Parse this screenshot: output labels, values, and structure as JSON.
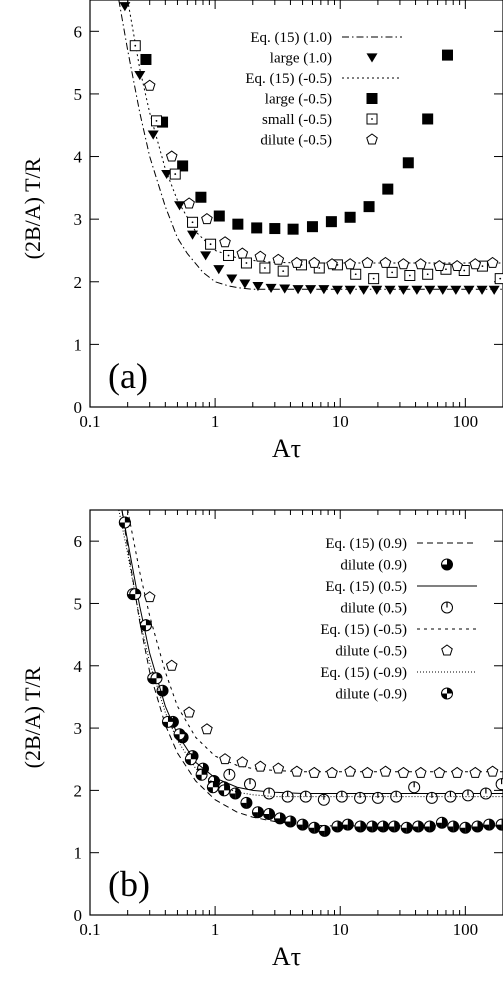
{
  "chart_data": [
    {
      "type": "scatter",
      "panel_label": "(a)",
      "xlabel": "Aτ",
      "ylabel": "(2B/A) T/R",
      "xscale": "log",
      "xlim": [
        0.1,
        200
      ],
      "ylim": [
        0,
        6.5
      ],
      "xticks": [
        {
          "value": 0.1,
          "label": "0.1"
        },
        {
          "value": 1,
          "label": "1"
        },
        {
          "value": 10,
          "label": "10"
        },
        {
          "value": 100,
          "label": "100"
        }
      ],
      "yticks": [
        {
          "value": 0,
          "label": "0"
        },
        {
          "value": 1,
          "label": "1"
        },
        {
          "value": 2,
          "label": "2"
        },
        {
          "value": 3,
          "label": "3"
        },
        {
          "value": 4,
          "label": "4"
        },
        {
          "value": 5,
          "label": "5"
        },
        {
          "value": 6,
          "label": "6"
        }
      ],
      "legend_position": "top-right",
      "series": [
        {
          "name": "Eq. (15) (1.0)",
          "kind": "line",
          "dash": "dashdot",
          "x": [
            0.17,
            0.2,
            0.25,
            0.3,
            0.4,
            0.5,
            0.6,
            0.8,
            1.0,
            1.3,
            1.6,
            2,
            3,
            5,
            10,
            20,
            50,
            100,
            200
          ],
          "y": [
            6.5,
            5.7,
            4.7,
            4.0,
            3.2,
            2.7,
            2.45,
            2.15,
            2.0,
            1.93,
            1.9,
            1.88,
            1.88,
            1.88,
            1.88,
            1.88,
            1.88,
            1.88,
            1.88
          ]
        },
        {
          "name": "large (1.0)",
          "kind": "markers",
          "marker": "triangle-down",
          "x": [
            0.19,
            0.25,
            0.32,
            0.41,
            0.52,
            0.66,
            0.84,
            1.07,
            1.36,
            1.73,
            2.2,
            2.8,
            3.6,
            4.6,
            5.8,
            7.4,
            9.5,
            12,
            15.4,
            19.6,
            25,
            32,
            41,
            52,
            66,
            84,
            107,
            136,
            170
          ],
          "y": [
            6.4,
            5.3,
            4.35,
            3.72,
            3.22,
            2.75,
            2.42,
            2.2,
            2.05,
            1.97,
            1.93,
            1.9,
            1.89,
            1.88,
            1.88,
            1.88,
            1.87,
            1.87,
            1.87,
            1.87,
            1.87,
            1.87,
            1.87,
            1.87,
            1.87,
            1.87,
            1.87,
            1.87,
            1.87
          ]
        },
        {
          "name": "Eq. (15) (-0.5)",
          "kind": "line",
          "dash": "dotted",
          "x": [
            0.2,
            0.25,
            0.3,
            0.4,
            0.5,
            0.7,
            1.0,
            1.5,
            2,
            3,
            5,
            10,
            20,
            50,
            100,
            200
          ],
          "y": [
            6.5,
            5.4,
            4.7,
            3.8,
            3.3,
            2.8,
            2.5,
            2.38,
            2.34,
            2.31,
            2.3,
            2.3,
            2.3,
            2.3,
            2.3,
            2.3
          ]
        },
        {
          "name": "large (-0.5)",
          "kind": "markers",
          "marker": "filled-square",
          "x": [
            0.28,
            0.38,
            0.55,
            0.77,
            1.08,
            1.52,
            2.15,
            3.0,
            4.2,
            6.0,
            8.5,
            12,
            17,
            24,
            35,
            50,
            72
          ],
          "y": [
            5.55,
            4.55,
            3.85,
            3.35,
            3.05,
            2.92,
            2.86,
            2.85,
            2.84,
            2.88,
            2.96,
            3.03,
            3.2,
            3.48,
            3.9,
            4.6,
            5.62
          ]
        },
        {
          "name": "small (-0.5)",
          "kind": "markers",
          "marker": "open-square-dot",
          "x": [
            0.23,
            0.34,
            0.48,
            0.66,
            0.92,
            1.28,
            1.78,
            2.5,
            3.5,
            4.9,
            6.8,
            9.5,
            13.3,
            18.5,
            26,
            36,
            50,
            70,
            98,
            137,
            190
          ],
          "y": [
            5.77,
            4.57,
            3.72,
            2.95,
            2.6,
            2.42,
            2.3,
            2.22,
            2.17,
            2.27,
            2.22,
            2.27,
            2.12,
            2.05,
            2.15,
            2.1,
            2.12,
            2.2,
            2.18,
            2.25,
            2.05
          ]
        },
        {
          "name": "dilute (-0.5)",
          "kind": "markers",
          "marker": "pentagon",
          "x": [
            0.3,
            0.45,
            0.62,
            0.86,
            1.2,
            1.65,
            2.3,
            3.2,
            4.5,
            6.2,
            8.6,
            12,
            16.5,
            23,
            32,
            44,
            62,
            86,
            120,
            165
          ],
          "y": [
            5.13,
            4.0,
            3.25,
            3.0,
            2.63,
            2.45,
            2.4,
            2.35,
            2.3,
            2.3,
            2.28,
            2.28,
            2.3,
            2.3,
            2.28,
            2.28,
            2.25,
            2.25,
            2.28,
            2.3
          ]
        }
      ]
    },
    {
      "type": "scatter",
      "panel_label": "(b)",
      "xlabel": "Aτ",
      "ylabel": "(2B/A) T/R",
      "xscale": "log",
      "xlim": [
        0.1,
        200
      ],
      "ylim": [
        0,
        6.5
      ],
      "xticks": [
        {
          "value": 0.1,
          "label": "0.1"
        },
        {
          "value": 1,
          "label": "1"
        },
        {
          "value": 10,
          "label": "10"
        },
        {
          "value": 100,
          "label": "100"
        }
      ],
      "yticks": [
        {
          "value": 0,
          "label": "0"
        },
        {
          "value": 1,
          "label": "1"
        },
        {
          "value": 2,
          "label": "2"
        },
        {
          "value": 3,
          "label": "3"
        },
        {
          "value": 4,
          "label": "4"
        },
        {
          "value": 5,
          "label": "5"
        },
        {
          "value": 6,
          "label": "6"
        }
      ],
      "legend_position": "top-right",
      "series": [
        {
          "name": "Eq. (15) (0.9)",
          "kind": "line",
          "dash": "dashed",
          "x": [
            0.18,
            0.2,
            0.25,
            0.3,
            0.4,
            0.5,
            0.7,
            1.0,
            1.5,
            2,
            3,
            5,
            8,
            15,
            30,
            100,
            200
          ],
          "y": [
            6.5,
            5.9,
            4.7,
            3.9,
            3.05,
            2.6,
            2.15,
            1.85,
            1.65,
            1.57,
            1.5,
            1.45,
            1.43,
            1.43,
            1.43,
            1.43,
            1.43
          ]
        },
        {
          "name": "dilute (0.9)",
          "kind": "markers",
          "marker": "circle-half-upright",
          "x": [
            0.19,
            0.22,
            0.28,
            0.32,
            0.38,
            0.46,
            0.55,
            0.66,
            0.8,
            0.98,
            1.18,
            1.45,
            1.78,
            2.2,
            2.7,
            3.3,
            4.0,
            5.0,
            6.2,
            7.5,
            9.5,
            11.5,
            14.5,
            18,
            22,
            27,
            34,
            42,
            52,
            65,
            80,
            100,
            125,
            155,
            195
          ],
          "y": [
            6.3,
            5.15,
            4.65,
            3.8,
            3.6,
            3.1,
            2.85,
            2.55,
            2.35,
            2.15,
            2.05,
            1.95,
            1.8,
            1.65,
            1.62,
            1.55,
            1.5,
            1.45,
            1.4,
            1.35,
            1.42,
            1.45,
            1.42,
            1.42,
            1.42,
            1.42,
            1.4,
            1.42,
            1.42,
            1.48,
            1.42,
            1.4,
            1.42,
            1.45,
            1.45
          ]
        },
        {
          "name": "Eq. (15) (0.5)",
          "kind": "line",
          "dash": "solid",
          "x": [
            0.18,
            0.2,
            0.25,
            0.3,
            0.4,
            0.5,
            0.7,
            1.0,
            1.5,
            2,
            3,
            5,
            10,
            30,
            100,
            200
          ],
          "y": [
            6.5,
            6.0,
            4.95,
            4.2,
            3.35,
            2.9,
            2.45,
            2.2,
            2.05,
            2.0,
            1.97,
            1.95,
            1.95,
            1.95,
            1.95,
            1.95
          ]
        },
        {
          "name": "dilute (0.5)",
          "kind": "markers",
          "marker": "circle-tick",
          "x": [
            1.3,
            1.9,
            2.7,
            3.8,
            5.3,
            7.4,
            10.3,
            14.4,
            20,
            28,
            39,
            54,
            76,
            105,
            146,
            195
          ],
          "y": [
            2.25,
            2.1,
            1.95,
            1.9,
            1.9,
            1.85,
            1.9,
            1.88,
            1.88,
            1.9,
            2.05,
            1.88,
            1.9,
            1.92,
            1.95,
            2.1
          ]
        },
        {
          "name": "Eq. (15) (-0.5)",
          "kind": "line",
          "dash": "dotted-sparse",
          "x": [
            0.2,
            0.25,
            0.3,
            0.4,
            0.5,
            0.7,
            1.0,
            1.5,
            2,
            3,
            5,
            10,
            30,
            100,
            200
          ],
          "y": [
            6.5,
            5.5,
            4.8,
            3.9,
            3.35,
            2.85,
            2.55,
            2.4,
            2.35,
            2.32,
            2.3,
            2.3,
            2.3,
            2.3,
            2.3
          ]
        },
        {
          "name": "dilute (-0.5)",
          "kind": "markers",
          "marker": "pentagon",
          "x": [
            0.3,
            0.45,
            0.62,
            0.86,
            1.2,
            1.65,
            2.3,
            3.2,
            4.5,
            6.2,
            8.6,
            12,
            16.5,
            23,
            32,
            44,
            62,
            86,
            120,
            165
          ],
          "y": [
            5.1,
            4.0,
            3.25,
            2.98,
            2.5,
            2.45,
            2.38,
            2.35,
            2.3,
            2.28,
            2.28,
            2.3,
            2.28,
            2.3,
            2.28,
            2.28,
            2.28,
            2.28,
            2.28,
            2.3
          ]
        },
        {
          "name": "Eq. (15) (-0.9)",
          "kind": "line",
          "dash": "fine-dotted",
          "x": [
            0.17,
            0.2,
            0.25,
            0.3,
            0.4,
            0.5,
            0.7,
            1.0,
            1.5,
            2,
            3,
            5,
            10,
            30,
            100,
            200
          ],
          "y": [
            6.5,
            5.8,
            4.75,
            4.05,
            3.25,
            2.8,
            2.35,
            2.1,
            1.97,
            1.93,
            1.9,
            1.9,
            1.9,
            1.9,
            1.9,
            1.9
          ]
        },
        {
          "name": "dilute (-0.9)",
          "kind": "markers",
          "marker": "circle-quarter",
          "x": [
            0.19,
            0.23,
            0.28,
            0.34,
            0.42,
            0.52,
            0.64,
            0.78,
            0.96,
            1.18
          ],
          "y": [
            6.3,
            5.15,
            4.65,
            3.8,
            3.1,
            2.9,
            2.5,
            2.25,
            2.05,
            2.0
          ]
        }
      ]
    }
  ]
}
